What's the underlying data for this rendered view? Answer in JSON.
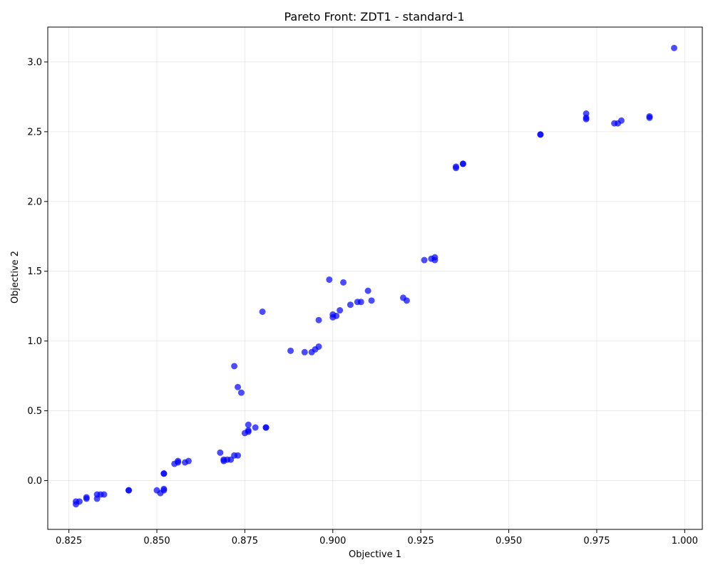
{
  "chart_data": {
    "type": "scatter",
    "title": "Pareto Front: ZDT1 - standard-1",
    "xlabel": "Objective 1",
    "ylabel": "Objective 2",
    "xlim": [
      0.819,
      1.005
    ],
    "ylim": [
      -0.35,
      3.25
    ],
    "grid": true,
    "legend": "none",
    "x_ticks": [
      0.825,
      0.85,
      0.875,
      0.9,
      0.925,
      0.95,
      0.975,
      1.0
    ],
    "x_tick_labels": [
      "0.825",
      "0.850",
      "0.875",
      "0.900",
      "0.925",
      "0.950",
      "0.975",
      "1.000"
    ],
    "y_ticks": [
      0.0,
      0.5,
      1.0,
      1.5,
      2.0,
      2.5,
      3.0
    ],
    "y_tick_labels": [
      "0.0",
      "0.5",
      "1.0",
      "1.5",
      "2.0",
      "2.5",
      "3.0"
    ],
    "series": [
      {
        "color": "#0000ff",
        "points": [
          [
            0.997,
            3.1
          ],
          [
            0.972,
            2.63
          ],
          [
            0.972,
            2.6
          ],
          [
            0.972,
            2.59
          ],
          [
            0.98,
            2.56
          ],
          [
            0.981,
            2.56
          ],
          [
            0.982,
            2.58
          ],
          [
            0.99,
            2.61
          ],
          [
            0.99,
            2.6
          ],
          [
            0.959,
            2.48
          ],
          [
            0.959,
            2.48
          ],
          [
            0.935,
            2.25
          ],
          [
            0.935,
            2.24
          ],
          [
            0.937,
            2.27
          ],
          [
            0.937,
            2.27
          ],
          [
            0.926,
            1.58
          ],
          [
            0.928,
            1.59
          ],
          [
            0.929,
            1.6
          ],
          [
            0.929,
            1.58
          ],
          [
            0.899,
            1.44
          ],
          [
            0.903,
            1.42
          ],
          [
            0.91,
            1.36
          ],
          [
            0.92,
            1.31
          ],
          [
            0.921,
            1.29
          ],
          [
            0.905,
            1.26
          ],
          [
            0.907,
            1.28
          ],
          [
            0.908,
            1.28
          ],
          [
            0.911,
            1.29
          ],
          [
            0.902,
            1.22
          ],
          [
            0.9,
            1.19
          ],
          [
            0.9,
            1.17
          ],
          [
            0.901,
            1.18
          ],
          [
            0.896,
            1.15
          ],
          [
            0.88,
            1.21
          ],
          [
            0.888,
            0.93
          ],
          [
            0.892,
            0.92
          ],
          [
            0.894,
            0.92
          ],
          [
            0.895,
            0.94
          ],
          [
            0.896,
            0.96
          ],
          [
            0.872,
            0.82
          ],
          [
            0.873,
            0.67
          ],
          [
            0.874,
            0.63
          ],
          [
            0.876,
            0.4
          ],
          [
            0.876,
            0.36
          ],
          [
            0.876,
            0.35
          ],
          [
            0.878,
            0.38
          ],
          [
            0.875,
            0.34
          ],
          [
            0.881,
            0.38
          ],
          [
            0.881,
            0.38
          ],
          [
            0.868,
            0.2
          ],
          [
            0.869,
            0.15
          ],
          [
            0.869,
            0.14
          ],
          [
            0.87,
            0.15
          ],
          [
            0.871,
            0.15
          ],
          [
            0.872,
            0.18
          ],
          [
            0.873,
            0.18
          ],
          [
            0.855,
            0.12
          ],
          [
            0.856,
            0.13
          ],
          [
            0.856,
            0.14
          ],
          [
            0.858,
            0.13
          ],
          [
            0.859,
            0.14
          ],
          [
            0.852,
            0.05
          ],
          [
            0.852,
            0.05
          ],
          [
            0.85,
            -0.07
          ],
          [
            0.851,
            -0.09
          ],
          [
            0.852,
            -0.06
          ],
          [
            0.852,
            -0.07
          ],
          [
            0.842,
            -0.07
          ],
          [
            0.842,
            -0.07
          ],
          [
            0.833,
            -0.1
          ],
          [
            0.833,
            -0.13
          ],
          [
            0.834,
            -0.1
          ],
          [
            0.835,
            -0.1
          ],
          [
            0.83,
            -0.13
          ],
          [
            0.83,
            -0.12
          ],
          [
            0.827,
            -0.17
          ],
          [
            0.827,
            -0.15
          ],
          [
            0.828,
            -0.15
          ]
        ]
      }
    ]
  }
}
